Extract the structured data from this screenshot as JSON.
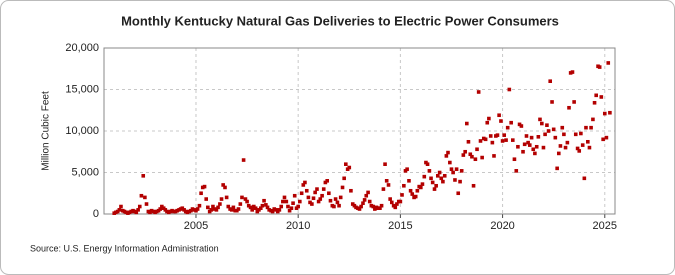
{
  "chart_data": {
    "type": "scatter",
    "title": "Monthly Kentucky Natural Gas Deliveries to Electric Power Consumers",
    "y_label": "Million Cubic Feet",
    "source": "Source: U.S. Energy Information Administration",
    "color": "#b30000",
    "grid": true,
    "xlim": [
      2000.5,
      2025.5
    ],
    "xticks": [
      2005,
      2010,
      2015,
      2020,
      2025
    ],
    "ylim": [
      0,
      20000
    ],
    "yticks": [
      0,
      {
        "value": 5000,
        "label": "5,000"
      },
      {
        "value": 10000,
        "label": "10,000"
      },
      {
        "value": 15000,
        "label": "15,000"
      },
      {
        "value": 20000,
        "label": "20,000"
      }
    ],
    "x": [
      2001,
      2001.08,
      2001.17,
      2001.25,
      2001.33,
      2001.42,
      2001.5,
      2001.58,
      2001.67,
      2001.75,
      2001.83,
      2001.92,
      2002,
      2002.08,
      2002.17,
      2002.25,
      2002.33,
      2002.42,
      2002.5,
      2002.58,
      2002.67,
      2002.75,
      2002.83,
      2002.92,
      2003,
      2003.08,
      2003.17,
      2003.25,
      2003.33,
      2003.42,
      2003.5,
      2003.58,
      2003.67,
      2003.75,
      2003.83,
      2003.92,
      2004,
      2004.08,
      2004.17,
      2004.25,
      2004.33,
      2004.42,
      2004.5,
      2004.58,
      2004.67,
      2004.75,
      2004.83,
      2004.92,
      2005,
      2005.08,
      2005.17,
      2005.25,
      2005.33,
      2005.42,
      2005.5,
      2005.58,
      2005.67,
      2005.75,
      2005.83,
      2005.92,
      2006,
      2006.08,
      2006.17,
      2006.25,
      2006.33,
      2006.42,
      2006.5,
      2006.58,
      2006.67,
      2006.75,
      2006.83,
      2006.92,
      2007,
      2007.08,
      2007.17,
      2007.25,
      2007.33,
      2007.42,
      2007.5,
      2007.58,
      2007.67,
      2007.75,
      2007.83,
      2007.92,
      2008,
      2008.08,
      2008.17,
      2008.25,
      2008.33,
      2008.42,
      2008.5,
      2008.58,
      2008.67,
      2008.75,
      2008.83,
      2008.92,
      2009,
      2009.08,
      2009.17,
      2009.25,
      2009.33,
      2009.42,
      2009.5,
      2009.58,
      2009.67,
      2009.75,
      2009.83,
      2009.92,
      2010,
      2010.08,
      2010.17,
      2010.25,
      2010.33,
      2010.42,
      2010.5,
      2010.58,
      2010.67,
      2010.75,
      2010.83,
      2010.92,
      2011,
      2011.08,
      2011.17,
      2011.25,
      2011.33,
      2011.42,
      2011.5,
      2011.58,
      2011.67,
      2011.75,
      2011.83,
      2011.92,
      2012,
      2012.08,
      2012.17,
      2012.25,
      2012.33,
      2012.42,
      2012.5,
      2012.58,
      2012.67,
      2012.75,
      2012.83,
      2012.92,
      2013,
      2013.08,
      2013.17,
      2013.25,
      2013.33,
      2013.42,
      2013.5,
      2013.58,
      2013.67,
      2013.75,
      2013.83,
      2013.92,
      2014,
      2014.08,
      2014.17,
      2014.25,
      2014.33,
      2014.42,
      2014.5,
      2014.58,
      2014.67,
      2014.75,
      2014.83,
      2014.92,
      2015,
      2015.08,
      2015.17,
      2015.25,
      2015.33,
      2015.42,
      2015.5,
      2015.58,
      2015.67,
      2015.75,
      2015.83,
      2015.92,
      2016,
      2016.08,
      2016.17,
      2016.25,
      2016.33,
      2016.42,
      2016.5,
      2016.58,
      2016.67,
      2016.75,
      2016.83,
      2016.92,
      2017,
      2017.08,
      2017.17,
      2017.25,
      2017.33,
      2017.42,
      2017.5,
      2017.58,
      2017.67,
      2017.75,
      2017.83,
      2017.92,
      2018,
      2018.08,
      2018.17,
      2018.25,
      2018.33,
      2018.42,
      2018.5,
      2018.58,
      2018.67,
      2018.75,
      2018.83,
      2018.92,
      2019,
      2019.08,
      2019.17,
      2019.25,
      2019.33,
      2019.42,
      2019.5,
      2019.58,
      2019.67,
      2019.75,
      2019.83,
      2019.92,
      2020,
      2020.08,
      2020.17,
      2020.25,
      2020.33,
      2020.42,
      2020.5,
      2020.58,
      2020.67,
      2020.75,
      2020.83,
      2020.92,
      2021,
      2021.08,
      2021.17,
      2021.25,
      2021.33,
      2021.42,
      2021.5,
      2021.58,
      2021.67,
      2021.75,
      2021.83,
      2021.92,
      2022,
      2022.08,
      2022.17,
      2022.25,
      2022.33,
      2022.42,
      2022.5,
      2022.58,
      2022.67,
      2022.75,
      2022.83,
      2022.92,
      2023,
      2023.08,
      2023.17,
      2023.25,
      2023.33,
      2023.42,
      2023.5,
      2023.58,
      2023.67,
      2023.75,
      2023.83,
      2023.92,
      2024,
      2024.08,
      2024.17,
      2024.25,
      2024.33,
      2024.42,
      2024.5,
      2024.58,
      2024.67,
      2024.75,
      2024.83,
      2024.92,
      2025,
      2025.08,
      2025.17,
      2025.25
    ],
    "values": [
      100,
      200,
      300,
      500,
      900,
      400,
      300,
      200,
      100,
      200,
      300,
      400,
      300,
      200,
      500,
      900,
      2200,
      4600,
      2000,
      1200,
      300,
      200,
      400,
      300,
      200,
      300,
      400,
      600,
      900,
      700,
      500,
      300,
      200,
      300,
      400,
      300,
      300,
      400,
      500,
      600,
      700,
      500,
      300,
      200,
      300,
      400,
      600,
      500,
      400,
      600,
      1000,
      2500,
      3200,
      3300,
      1800,
      800,
      300,
      500,
      900,
      600,
      500,
      800,
      1200,
      1800,
      3500,
      3200,
      2000,
      900,
      600,
      500,
      800,
      400,
      400,
      600,
      1200,
      2000,
      6500,
      1800,
      1500,
      1000,
      800,
      500,
      900,
      700,
      300,
      500,
      700,
      1000,
      1600,
      1100,
      800,
      500,
      400,
      300,
      600,
      500,
      300,
      500,
      900,
      1500,
      2000,
      1500,
      900,
      400,
      700,
      1300,
      2200,
      700,
      900,
      1500,
      2500,
      3500,
      3800,
      2800,
      2000,
      1400,
      1200,
      1900,
      2600,
      3000,
      1500,
      1800,
      2200,
      3000,
      3800,
      4000,
      2500,
      1600,
      1000,
      900,
      1800,
      1400,
      1000,
      2000,
      3200,
      4300,
      6000,
      5400,
      5600,
      2800,
      1200,
      1000,
      800,
      700,
      600,
      900,
      1300,
      1700,
      2200,
      2600,
      1500,
      1000,
      900,
      600,
      800,
      700,
      700,
      1000,
      3000,
      6000,
      4000,
      3500,
      1800,
      1400,
      1000,
      800,
      1200,
      1500,
      1500,
      2300,
      3400,
      5200,
      5400,
      4000,
      2800,
      2400,
      2000,
      2100,
      2800,
      3300,
      3200,
      3600,
      4500,
      6200,
      6000,
      5200,
      4300,
      3800,
      3000,
      3400,
      4600,
      5000,
      4300,
      3900,
      4600,
      7000,
      7400,
      6200,
      5400,
      5000,
      4100,
      5400,
      2500,
      3900,
      5200,
      7100,
      7500,
      10900,
      8700,
      7200,
      6900,
      3400,
      6600,
      7800,
      14700,
      8800,
      6800,
      9100,
      9000,
      11000,
      11500,
      9400,
      8600,
      7000,
      9400,
      9500,
      11900,
      11200,
      8800,
      9500,
      8900,
      10400,
      15000,
      11000,
      8900,
      6600,
      5200,
      8100,
      10800,
      10600,
      7500,
      8400,
      9400,
      8600,
      8300,
      9200,
      7800,
      7300,
      8100,
      9300,
      11400,
      10900,
      8000,
      9600,
      10700,
      10000,
      16000,
      13500,
      10200,
      9200,
      5500,
      7300,
      8200,
      10400,
      9600,
      8000,
      8600,
      12800,
      17000,
      17100,
      13500,
      9600,
      7900,
      7600,
      9700,
      8300,
      4300,
      10400,
      8700,
      8000,
      10400,
      11400,
      13400,
      14300,
      17800,
      17700,
      14100,
      9000,
      12100,
      9200,
      18200,
      12200
    ]
  }
}
